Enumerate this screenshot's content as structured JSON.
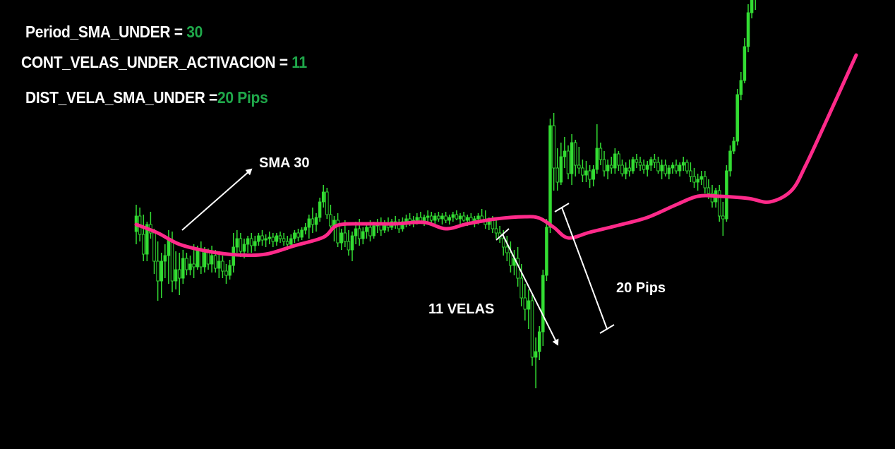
{
  "params": [
    {
      "label": "Period_SMA_UNDER  = ",
      "value": "30"
    },
    {
      "label": "CONT_VELAS_UNDER_ACTIVACION = ",
      "value": "11"
    },
    {
      "label": "DIST_VELA_SMA_UNDER =",
      "value": "20 Pips"
    }
  ],
  "colors": {
    "background": "#000000",
    "candle": "#33dd33",
    "sma": "#ff2a8a",
    "param_value": "#1fa84a",
    "annotation": "#ffffff"
  },
  "chart_data": {
    "type": "line",
    "annotations": {
      "sma_label": "SMA 30",
      "candles_label": "11 VELAS",
      "distance_label": "20 Pips"
    },
    "sma_period": 30,
    "sma": [
      [
        0,
        0.0
      ],
      [
        6,
        -0.6
      ],
      [
        12,
        -1.4
      ],
      [
        20,
        -1.9
      ],
      [
        28,
        -2.15
      ],
      [
        36,
        -2.1
      ],
      [
        44,
        -1.5
      ],
      [
        52,
        -0.9
      ],
      [
        56,
        -0.05
      ],
      [
        64,
        0.05
      ],
      [
        72,
        0.05
      ],
      [
        80,
        0.15
      ],
      [
        86,
        -0.3
      ],
      [
        92,
        0.05
      ],
      [
        100,
        0.4
      ],
      [
        108,
        0.55
      ],
      [
        112,
        0.45
      ],
      [
        116,
        -0.2
      ],
      [
        120,
        -0.95
      ],
      [
        126,
        -0.55
      ],
      [
        134,
        -0.05
      ],
      [
        142,
        0.5
      ],
      [
        150,
        1.4
      ],
      [
        156,
        2.0
      ],
      [
        162,
        2.0
      ],
      [
        170,
        1.85
      ],
      [
        176,
        1.6
      ],
      [
        182,
        2.4
      ],
      [
        186,
        4.2
      ],
      [
        192,
        7.5
      ],
      [
        200,
        12.0
      ]
    ],
    "candles": [
      [
        -0.5,
        1.4,
        -1.4,
        0.6
      ],
      [
        0.6,
        1.2,
        -1.2,
        -0.7
      ],
      [
        -0.7,
        0.7,
        -2.6,
        -2.1
      ],
      [
        -2.1,
        0.2,
        -2.6,
        0.0
      ],
      [
        0.0,
        0.9,
        -1.0,
        -0.6
      ],
      [
        -0.6,
        -0.3,
        -3.5,
        -2.6
      ],
      [
        -2.6,
        -1.2,
        -5.4,
        -4.0
      ],
      [
        -4.0,
        -2.0,
        -5.2,
        -2.6
      ],
      [
        -2.6,
        -1.4,
        -3.8,
        -2.2
      ],
      [
        -2.2,
        -0.4,
        -4.2,
        -1.1
      ],
      [
        -1.1,
        -0.5,
        -4.8,
        -4.0
      ],
      [
        -4.0,
        -1.9,
        -4.6,
        -3.2
      ],
      [
        -3.2,
        -2.0,
        -5.0,
        -3.8
      ],
      [
        -3.8,
        -1.8,
        -4.2,
        -2.4
      ],
      [
        -2.4,
        -2.0,
        -3.6,
        -3.2
      ],
      [
        -3.2,
        -2.2,
        -3.6,
        -2.8
      ],
      [
        -2.8,
        -1.4,
        -3.8,
        -3.0
      ],
      [
        -3.0,
        -1.5,
        -3.2,
        -1.8
      ],
      [
        -1.8,
        -1.2,
        -3.5,
        -3.0
      ],
      [
        -3.0,
        -1.6,
        -3.4,
        -2.0
      ],
      [
        -2.0,
        -1.7,
        -3.2,
        -2.8
      ],
      [
        -2.8,
        -1.5,
        -3.4,
        -2.2
      ],
      [
        -2.2,
        -1.8,
        -3.4,
        -3.1
      ],
      [
        -3.1,
        -1.9,
        -3.8,
        -2.6
      ],
      [
        -2.6,
        -2.2,
        -3.8,
        -3.3
      ],
      [
        -3.3,
        -2.8,
        -4.2,
        -3.6
      ],
      [
        -3.6,
        -2.5,
        -3.9,
        -2.9
      ],
      [
        -2.9,
        -0.6,
        -3.4,
        -1.6
      ],
      [
        -1.6,
        -0.4,
        -2.0,
        -1.0
      ],
      [
        -1.0,
        -0.6,
        -2.3,
        -1.9
      ],
      [
        -1.9,
        -1.0,
        -2.4,
        -1.4
      ],
      [
        -1.4,
        -0.8,
        -2.0,
        -1.0
      ],
      [
        -1.0,
        -0.6,
        -2.0,
        -1.5
      ],
      [
        -1.5,
        -0.8,
        -1.9,
        -1.2
      ],
      [
        -1.2,
        -0.6,
        -1.5,
        -0.8
      ],
      [
        -0.8,
        -0.4,
        -1.5,
        -1.1
      ],
      [
        -1.1,
        -0.7,
        -1.6,
        -1.0
      ],
      [
        -1.0,
        -0.5,
        -1.4,
        -0.9
      ],
      [
        -0.9,
        -0.6,
        -1.6,
        -1.2
      ],
      [
        -1.2,
        -0.6,
        -1.5,
        -0.8
      ],
      [
        -0.8,
        -0.5,
        -1.3,
        -1.0
      ],
      [
        -1.0,
        -0.6,
        -1.5,
        -1.2
      ],
      [
        -1.2,
        -0.8,
        -1.8,
        -1.4
      ],
      [
        -1.4,
        -0.7,
        -1.7,
        -1.0
      ],
      [
        -1.0,
        -0.4,
        -1.3,
        -0.6
      ],
      [
        -0.6,
        -0.3,
        -1.2,
        -0.9
      ],
      [
        -0.9,
        -0.2,
        -1.1,
        -0.4
      ],
      [
        -0.4,
        0.1,
        -0.7,
        -0.2
      ],
      [
        -0.2,
        0.7,
        -1.0,
        0.4
      ],
      [
        0.4,
        1.2,
        -0.6,
        0.0
      ],
      [
        0.0,
        0.8,
        -0.5,
        0.5
      ],
      [
        0.5,
        1.9,
        0.2,
        1.6
      ],
      [
        1.6,
        2.8,
        1.2,
        2.3
      ],
      [
        2.3,
        2.6,
        0.4,
        0.7
      ],
      [
        0.7,
        1.4,
        -0.4,
        -0.1
      ],
      [
        -0.1,
        0.6,
        -1.2,
        0.3
      ],
      [
        0.3,
        0.8,
        -1.6,
        -1.3
      ],
      [
        -1.3,
        -0.3,
        -1.8,
        -0.6
      ],
      [
        -0.6,
        0.3,
        -1.6,
        -1.2
      ],
      [
        -1.2,
        -0.4,
        -2.2,
        -1.8
      ],
      [
        -1.8,
        -0.5,
        -2.6,
        -0.8
      ],
      [
        -0.8,
        0.2,
        -1.4,
        -0.3
      ],
      [
        -0.3,
        0.4,
        -1.5,
        -1.0
      ],
      [
        -1.0,
        -0.2,
        -1.4,
        -0.5
      ],
      [
        -0.5,
        0.1,
        -1.0,
        -0.2
      ],
      [
        -0.2,
        0.3,
        -1.2,
        -0.8
      ],
      [
        -0.8,
        0.2,
        -1.0,
        -0.1
      ],
      [
        -0.1,
        0.4,
        -0.6,
        0.0
      ],
      [
        0.0,
        0.5,
        -0.8,
        -0.4
      ],
      [
        -0.4,
        0.3,
        -0.6,
        0.1
      ],
      [
        0.1,
        0.5,
        -0.5,
        -0.2
      ],
      [
        -0.2,
        0.4,
        -0.4,
        0.2
      ],
      [
        0.2,
        0.6,
        -0.3,
        0.0
      ],
      [
        0.0,
        0.4,
        -0.6,
        -0.3
      ],
      [
        -0.3,
        0.5,
        -0.5,
        0.2
      ],
      [
        0.2,
        0.7,
        -0.2,
        0.4
      ],
      [
        0.4,
        0.8,
        -0.1,
        0.1
      ],
      [
        0.1,
        0.6,
        -0.2,
        0.3
      ],
      [
        0.3,
        0.8,
        0.0,
        0.5
      ],
      [
        0.5,
        0.9,
        0.1,
        0.2
      ],
      [
        0.2,
        0.7,
        -0.1,
        0.5
      ],
      [
        0.5,
        1.0,
        0.2,
        0.6
      ],
      [
        0.6,
        0.9,
        0.1,
        0.3
      ],
      [
        0.3,
        0.8,
        0.0,
        0.6
      ],
      [
        0.6,
        0.9,
        0.2,
        0.4
      ],
      [
        0.4,
        0.8,
        0.0,
        0.6
      ],
      [
        0.6,
        0.9,
        0.1,
        0.3
      ],
      [
        0.3,
        0.7,
        0.0,
        0.5
      ],
      [
        0.5,
        0.9,
        0.2,
        0.7
      ],
      [
        0.7,
        1.0,
        0.3,
        0.4
      ],
      [
        0.4,
        0.8,
        0.0,
        0.6
      ],
      [
        0.6,
        0.9,
        0.2,
        0.3
      ],
      [
        0.3,
        0.7,
        -0.1,
        0.5
      ],
      [
        0.5,
        0.8,
        0.1,
        0.2
      ],
      [
        0.2,
        0.6,
        -0.2,
        0.4
      ],
      [
        0.4,
        0.8,
        0.0,
        0.6
      ],
      [
        0.6,
        1.1,
        0.2,
        0.3
      ],
      [
        0.3,
        1.0,
        -0.3,
        0.0
      ],
      [
        0.0,
        0.5,
        -0.4,
        0.3
      ],
      [
        0.3,
        0.6,
        -0.6,
        -0.3
      ],
      [
        -0.3,
        0.3,
        -1.0,
        -0.6
      ],
      [
        -0.6,
        -0.1,
        -1.3,
        -1.0
      ],
      [
        -1.0,
        -0.4,
        -2.2,
        -1.6
      ],
      [
        -1.6,
        -0.8,
        -2.6,
        -2.0
      ],
      [
        -2.0,
        -1.2,
        -3.4,
        -2.9
      ],
      [
        -2.9,
        -1.8,
        -3.6,
        -2.4
      ],
      [
        -2.4,
        -1.6,
        -4.4,
        -3.8
      ],
      [
        -3.8,
        -2.8,
        -5.8,
        -5.2
      ],
      [
        -5.2,
        -4.2,
        -6.8,
        -6.0
      ],
      [
        -6.0,
        -4.6,
        -7.4,
        -5.4
      ],
      [
        -5.4,
        -5.0,
        -10.0,
        -9.4
      ],
      [
        -9.4,
        -8.0,
        -11.6,
        -9.0
      ],
      [
        -9.0,
        -7.2,
        -9.6,
        -7.6
      ],
      [
        -7.6,
        -3.2,
        -8.6,
        -3.6
      ],
      [
        -3.6,
        0.4,
        -4.0,
        -0.2
      ],
      [
        -0.2,
        7.5,
        -0.6,
        7.0
      ],
      [
        7.0,
        7.9,
        2.4,
        4.0
      ],
      [
        4.0,
        5.4,
        2.4,
        3.0
      ],
      [
        3.0,
        5.8,
        2.8,
        4.8
      ],
      [
        4.8,
        6.2,
        4.0,
        5.2
      ],
      [
        5.2,
        5.6,
        3.2,
        3.6
      ],
      [
        3.6,
        6.4,
        2.8,
        5.8
      ],
      [
        5.8,
        6.0,
        3.4,
        4.2
      ],
      [
        4.2,
        5.5,
        3.6,
        4.0
      ],
      [
        4.0,
        4.6,
        3.0,
        3.5
      ],
      [
        3.5,
        4.5,
        3.0,
        3.8
      ],
      [
        3.8,
        4.2,
        2.6,
        3.2
      ],
      [
        3.2,
        4.2,
        2.7,
        3.9
      ],
      [
        3.9,
        7.1,
        3.6,
        5.4
      ],
      [
        5.4,
        5.8,
        4.2,
        4.6
      ],
      [
        4.6,
        5.2,
        3.4,
        3.8
      ],
      [
        3.8,
        4.6,
        3.2,
        4.2
      ],
      [
        4.2,
        4.8,
        3.6,
        4.0
      ],
      [
        4.0,
        5.4,
        3.6,
        5.0
      ],
      [
        5.0,
        5.2,
        3.8,
        4.2
      ],
      [
        4.2,
        4.6,
        3.4,
        3.6
      ],
      [
        3.6,
        4.4,
        3.2,
        4.0
      ],
      [
        4.0,
        4.6,
        3.4,
        3.8
      ],
      [
        3.8,
        4.8,
        3.6,
        4.6
      ],
      [
        4.6,
        5.0,
        4.0,
        4.4
      ],
      [
        4.4,
        4.8,
        3.8,
        4.2
      ],
      [
        4.2,
        4.6,
        3.6,
        3.9
      ],
      [
        3.9,
        4.5,
        3.4,
        4.2
      ],
      [
        4.2,
        4.8,
        3.8,
        4.6
      ],
      [
        4.6,
        5.0,
        4.0,
        4.4
      ],
      [
        4.4,
        4.8,
        3.6,
        3.8
      ],
      [
        3.8,
        4.6,
        3.2,
        4.2
      ],
      [
        4.2,
        4.6,
        3.4,
        3.6
      ],
      [
        3.6,
        4.2,
        3.2,
        4.0
      ],
      [
        4.0,
        4.4,
        3.6,
        4.2
      ],
      [
        4.2,
        4.6,
        3.6,
        3.8
      ],
      [
        3.8,
        4.4,
        3.4,
        4.2
      ],
      [
        4.2,
        4.8,
        3.8,
        4.4
      ],
      [
        4.4,
        4.6,
        3.6,
        3.8
      ],
      [
        3.8,
        4.4,
        3.0,
        3.4
      ],
      [
        3.4,
        4.0,
        2.6,
        3.0
      ],
      [
        3.0,
        3.6,
        2.4,
        3.2
      ],
      [
        3.2,
        3.8,
        2.8,
        3.4
      ],
      [
        3.4,
        3.8,
        2.2,
        2.6
      ],
      [
        2.6,
        3.2,
        1.8,
        2.2
      ],
      [
        2.2,
        2.8,
        1.2,
        1.6
      ],
      [
        1.6,
        2.6,
        1.2,
        2.4
      ],
      [
        2.4,
        2.8,
        0.2,
        0.6
      ],
      [
        0.6,
        1.6,
        -0.8,
        0.4
      ],
      [
        0.4,
        4.2,
        0.2,
        3.8
      ],
      [
        3.8,
        5.6,
        3.4,
        5.2
      ],
      [
        5.2,
        6.2,
        5.0,
        5.9
      ],
      [
        5.9,
        9.6,
        5.6,
        9.2
      ],
      [
        9.2,
        10.8,
        8.8,
        10.2
      ],
      [
        10.2,
        13.2,
        10.0,
        12.6
      ],
      [
        12.6,
        15.6,
        12.2,
        15.0
      ],
      [
        15.0,
        16.2,
        14.6,
        16.0
      ],
      [
        16.0,
        16.8,
        15.2,
        16.4
      ]
    ]
  }
}
